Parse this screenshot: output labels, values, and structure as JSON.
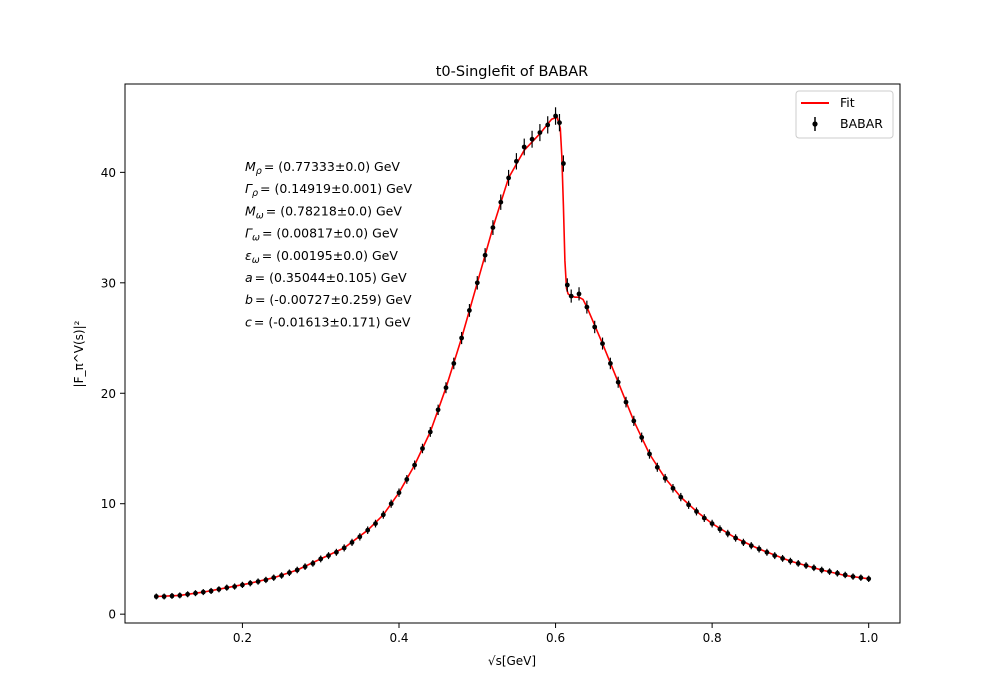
{
  "chart_data": {
    "type": "scatter",
    "title": "t0-Singlefit of BABAR",
    "xlabel": "√s[GeV]",
    "ylabel": "|F_π^V(s)|²",
    "xlim": [
      0.05,
      1.04
    ],
    "ylim": [
      -0.8,
      48.0
    ],
    "xticks": [
      0.2,
      0.4,
      0.6,
      0.8,
      1.0
    ],
    "xtick_labels": [
      "0.2",
      "0.4",
      "0.6",
      "0.8",
      "1.0"
    ],
    "yticks": [
      0,
      10,
      20,
      30,
      40
    ],
    "ytick_labels": [
      "0",
      "10",
      "20",
      "30",
      "40"
    ],
    "grid": false,
    "legend": {
      "placement": "top-right",
      "entries": [
        {
          "label": "Fit",
          "color": "#ff0000",
          "kind": "line"
        },
        {
          "label": "BABAR",
          "color": "#000000",
          "kind": "errorbar-marker"
        }
      ]
    },
    "annotations": [
      {
        "sym": "M",
        "sub": "ρ",
        "value": "= (0.77333±0.0) GeV"
      },
      {
        "sym": "Γ",
        "sub": "ρ",
        "value": "= (0.14919±0.001) GeV"
      },
      {
        "sym": "M",
        "sub": "ω",
        "value": "= (0.78218±0.0) GeV"
      },
      {
        "sym": "Γ",
        "sub": "ω",
        "value": "= (0.00817±0.0) GeV"
      },
      {
        "sym": "ε",
        "sub": "ω",
        "value": "= (0.00195±0.0) GeV"
      },
      {
        "sym": "a",
        "sub": "",
        "value": "= (0.35044±0.105) GeV"
      },
      {
        "sym": "b",
        "sub": "",
        "value": "= (-0.00727±0.259) GeV"
      },
      {
        "sym": "c",
        "sub": "",
        "value": "= (-0.01613±0.171) GeV"
      }
    ],
    "series": [
      {
        "name": "Fit",
        "kind": "line",
        "color": "#ff0000",
        "x": [
          0.09,
          0.12,
          0.15,
          0.18,
          0.21,
          0.24,
          0.27,
          0.3,
          0.33,
          0.36,
          0.38,
          0.4,
          0.42,
          0.44,
          0.46,
          0.48,
          0.5,
          0.52,
          0.54,
          0.56,
          0.58,
          0.595,
          0.602,
          0.606,
          0.608,
          0.61,
          0.612,
          0.614,
          0.616,
          0.62,
          0.625,
          0.63,
          0.635,
          0.64,
          0.66,
          0.68,
          0.7,
          0.72,
          0.74,
          0.76,
          0.78,
          0.8,
          0.83,
          0.86,
          0.9,
          0.94,
          0.97,
          1.0
        ],
        "y": [
          1.6,
          1.7,
          2.0,
          2.4,
          2.8,
          3.3,
          4.0,
          5.0,
          6.0,
          7.6,
          9.0,
          11.0,
          13.5,
          16.5,
          20.5,
          25.0,
          30.0,
          35.0,
          39.5,
          42.0,
          43.5,
          44.8,
          45.0,
          44.0,
          41.5,
          37.0,
          32.0,
          29.5,
          29.0,
          28.8,
          28.7,
          28.7,
          28.5,
          27.8,
          24.5,
          21.0,
          17.5,
          14.5,
          12.3,
          10.6,
          9.3,
          8.2,
          6.9,
          5.9,
          4.8,
          4.0,
          3.5,
          3.2
        ]
      },
      {
        "name": "BABAR",
        "kind": "errorbar",
        "color": "#000000",
        "x": [
          0.09,
          0.1,
          0.11,
          0.12,
          0.13,
          0.14,
          0.15,
          0.16,
          0.17,
          0.18,
          0.19,
          0.2,
          0.21,
          0.22,
          0.23,
          0.24,
          0.25,
          0.26,
          0.27,
          0.28,
          0.29,
          0.3,
          0.31,
          0.32,
          0.33,
          0.34,
          0.35,
          0.36,
          0.37,
          0.38,
          0.39,
          0.4,
          0.41,
          0.42,
          0.43,
          0.44,
          0.45,
          0.46,
          0.47,
          0.48,
          0.49,
          0.5,
          0.51,
          0.52,
          0.53,
          0.54,
          0.55,
          0.56,
          0.57,
          0.58,
          0.59,
          0.6,
          0.605,
          0.61,
          0.615,
          0.62,
          0.63,
          0.64,
          0.65,
          0.66,
          0.67,
          0.68,
          0.69,
          0.7,
          0.71,
          0.72,
          0.73,
          0.74,
          0.75,
          0.76,
          0.77,
          0.78,
          0.79,
          0.8,
          0.81,
          0.82,
          0.83,
          0.84,
          0.85,
          0.86,
          0.87,
          0.88,
          0.89,
          0.9,
          0.91,
          0.92,
          0.93,
          0.94,
          0.95,
          0.96,
          0.97,
          0.98,
          0.99,
          1.0
        ],
        "y": [
          1.6,
          1.6,
          1.65,
          1.7,
          1.8,
          1.9,
          2.0,
          2.1,
          2.25,
          2.4,
          2.5,
          2.65,
          2.8,
          2.95,
          3.1,
          3.3,
          3.5,
          3.75,
          4.0,
          4.3,
          4.6,
          5.0,
          5.3,
          5.6,
          6.0,
          6.5,
          7.0,
          7.6,
          8.2,
          9.0,
          10.0,
          11.0,
          12.2,
          13.5,
          15.0,
          16.5,
          18.5,
          20.5,
          22.7,
          25.0,
          27.5,
          30.0,
          32.5,
          35.0,
          37.3,
          39.5,
          41.0,
          42.3,
          43.0,
          43.6,
          44.3,
          45.1,
          44.5,
          40.8,
          29.8,
          28.8,
          29.0,
          27.8,
          26.0,
          24.5,
          22.7,
          21.0,
          19.2,
          17.5,
          16.0,
          14.5,
          13.3,
          12.3,
          11.4,
          10.6,
          9.9,
          9.3,
          8.7,
          8.2,
          7.7,
          7.3,
          6.9,
          6.5,
          6.2,
          5.9,
          5.6,
          5.3,
          5.05,
          4.8,
          4.6,
          4.4,
          4.2,
          4.0,
          3.85,
          3.7,
          3.55,
          3.4,
          3.3,
          3.2
        ]
      }
    ]
  }
}
